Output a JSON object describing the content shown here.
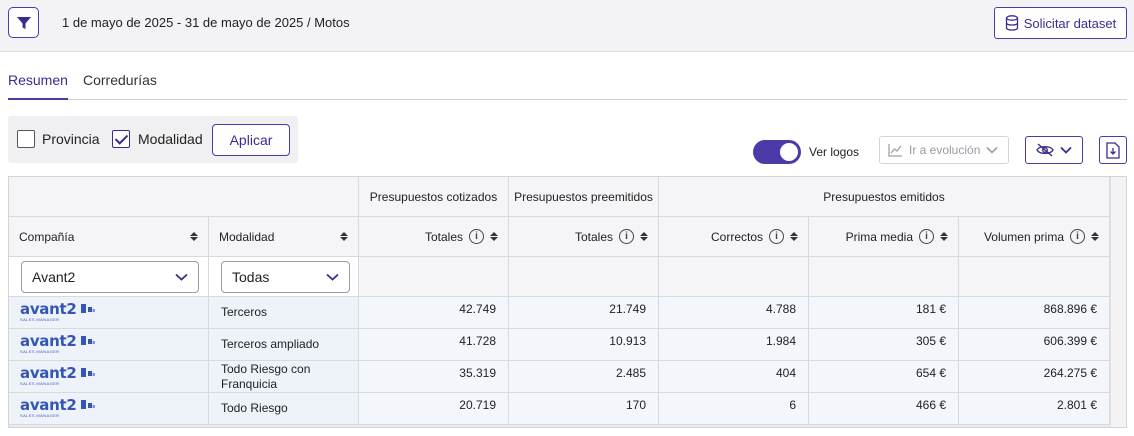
{
  "topbar": {
    "period": "1 de mayo de 2025 - 31 de mayo de 2025 / Motos",
    "dataset_label": "Solicitar dataset"
  },
  "tabs": [
    {
      "label": "Resumen",
      "active": true
    },
    {
      "label": "Corredurías",
      "active": false
    }
  ],
  "grouping": {
    "options": [
      {
        "label": "Provincia",
        "checked": false
      },
      {
        "label": "Modalidad",
        "checked": true
      }
    ],
    "apply_label": "Aplicar"
  },
  "view": {
    "logos_label": "Ver logos",
    "logos_on": true,
    "evolution_label": "Ir a evolución"
  },
  "table": {
    "groups": {
      "cotizados": "Presupuestos cotizados",
      "preemitidos": "Presupuestos preemitidos",
      "emitidos": "Presupuestos emitidos"
    },
    "columns": {
      "company": "Compañía",
      "modality": "Modalidad",
      "cot_total": "Totales",
      "pre_total": "Totales",
      "correct": "Correctos",
      "avg_premium": "Prima media",
      "premium_volume": "Volumen prima"
    },
    "filters": {
      "company": "Avant2",
      "modality": "Todas"
    },
    "logo": {
      "word": "avant2",
      "sub": "SALES MANAGER"
    },
    "rows": [
      {
        "modality": "Terceros",
        "cot_total": "42.749",
        "pre_total": "21.749",
        "correct": "4.788",
        "avg_premium": "181 €",
        "premium_volume": "868.896 €"
      },
      {
        "modality": "Terceros ampliado",
        "cot_total": "41.728",
        "pre_total": "10.913",
        "correct": "1.984",
        "avg_premium": "305 €",
        "premium_volume": "606.399 €"
      },
      {
        "modality": "Todo Riesgo con Franquicia",
        "cot_total": "35.319",
        "pre_total": "2.485",
        "correct": "404",
        "avg_premium": "654 €",
        "premium_volume": "264.275 €"
      },
      {
        "modality": "Todo Riesgo",
        "cot_total": "20.719",
        "pre_total": "170",
        "correct": "6",
        "avg_premium": "466 €",
        "premium_volume": "2.801 €"
      }
    ]
  },
  "colors": {
    "accent": "#4b3aa8",
    "logo": "#3555b5",
    "row": "#eef3fa"
  },
  "icons": {
    "filter": "funnel-icon",
    "dataset": "database-icon",
    "evolution": "line-chart-icon",
    "visibility": "eye-slash-icon",
    "download": "download-file-icon",
    "info": "info-icon",
    "sort": "sort-icon"
  }
}
